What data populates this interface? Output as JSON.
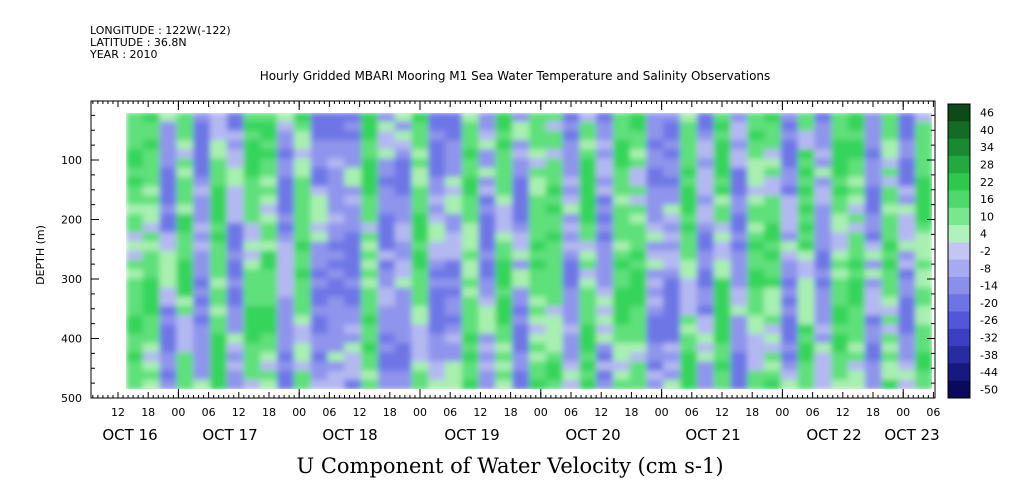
{
  "header": {
    "longitude": "LONGITUDE : 122W(-122)",
    "latitude": "LATITUDE : 36.8N",
    "year": "YEAR : 2010"
  },
  "chart_title": "Hourly Gridded MBARI Mooring M1 Sea Water Temperature and Salinity Observations",
  "chart_data": {
    "type": "heatmap",
    "title": "U Component of Water Velocity (cm s-1)",
    "ylabel": "DEPTH (m)",
    "xlabel": "",
    "y_range": [
      500,
      10
    ],
    "y_reversed": true,
    "y_ticks": [
      100,
      200,
      300,
      400,
      500
    ],
    "x_range_hours": [
      0,
      186
    ],
    "x_hour_labels": [
      "12",
      "18",
      "00",
      "06",
      "12",
      "18",
      "00",
      "06",
      "12",
      "18",
      "00",
      "06",
      "12",
      "18",
      "00",
      "06",
      "12",
      "18",
      "00",
      "06",
      "12",
      "18",
      "00",
      "06",
      "12",
      "18",
      "00",
      "06"
    ],
    "x_date_labels": [
      "OCT 16",
      "OCT 17",
      "OCT 18",
      "OCT 19",
      "OCT 20",
      "OCT 21",
      "OCT 22",
      "OCT 23"
    ],
    "colorbar_levels": [
      46,
      40,
      34,
      28,
      22,
      16,
      10,
      4,
      -2,
      -8,
      -14,
      -20,
      -26,
      -32,
      -38,
      -44,
      -50
    ],
    "colorbar_labels": [
      "46",
      "40",
      "34",
      "28",
      "22",
      "16",
      "10",
      "4",
      "-2",
      "-8",
      "-14",
      "-20",
      "-26",
      "-32",
      "-38",
      "-44",
      "-50"
    ],
    "colors": {
      "positive_strong": "#0a5a1e",
      "positive_mid": "#35d45a",
      "positive_weak": "#a8f0b0",
      "negative_weak": "#b4b8f2",
      "negative_mid": "#6e76e6",
      "negative_strong": "#0a0a6e"
    },
    "column_mean_sign": [
      "+",
      "+",
      "-",
      "+",
      "-",
      "+",
      "-",
      "+",
      "+",
      "-",
      "+",
      "-",
      "-",
      "-",
      "+",
      "-",
      "-",
      "+",
      "-",
      "-",
      "+",
      "-",
      "+",
      "-",
      "+",
      "+",
      "-",
      "+",
      "-",
      "+",
      "+",
      "-",
      "-",
      "+",
      "-",
      "+",
      "-",
      "+",
      "+",
      "-",
      "+",
      "-",
      "+",
      "+",
      "-",
      "+",
      "-",
      "+"
    ],
    "depth_range_m": [
      20,
      485
    ]
  }
}
